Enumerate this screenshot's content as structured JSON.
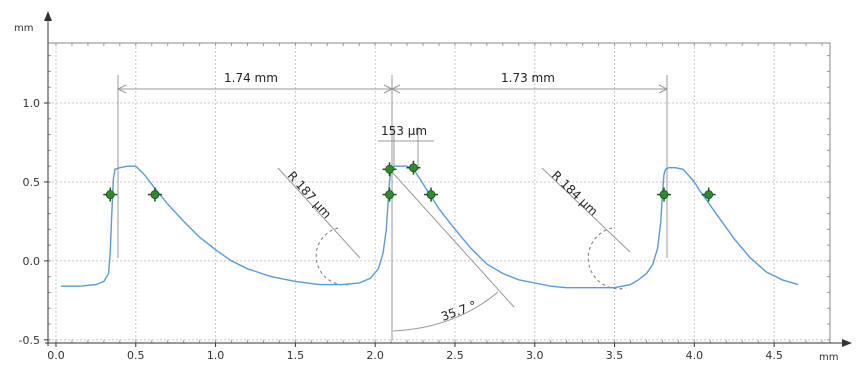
{
  "chart_data": {
    "type": "line",
    "y_unit": "mm",
    "x_unit": "mm",
    "xlim": [
      -0.05,
      4.85
    ],
    "ylim": [
      -0.52,
      1.38
    ],
    "grid": true,
    "x_ticks": [
      {
        "v": 0.0,
        "label": "0.0"
      },
      {
        "v": 0.5,
        "label": "0.5"
      },
      {
        "v": 1.0,
        "label": "1.0"
      },
      {
        "v": 1.5,
        "label": "1.5"
      },
      {
        "v": 2.0,
        "label": "2.0"
      },
      {
        "v": 2.5,
        "label": "2.5"
      },
      {
        "v": 3.0,
        "label": "3.0"
      },
      {
        "v": 3.5,
        "label": "3.5"
      },
      {
        "v": 4.0,
        "label": "4.0"
      },
      {
        "v": 4.5,
        "label": "4.5"
      }
    ],
    "y_ticks": [
      {
        "v": -0.5,
        "label": "-0.5"
      },
      {
        "v": 0.0,
        "label": "0.0"
      },
      {
        "v": 0.5,
        "label": "0.5"
      },
      {
        "v": 1.0,
        "label": "1.0"
      }
    ],
    "series": [
      {
        "color": "#5b9bd5",
        "x": [
          0.03,
          0.15,
          0.25,
          0.3,
          0.33,
          0.34,
          0.35,
          0.36,
          0.37,
          0.4,
          0.45,
          0.5,
          0.55,
          0.62,
          0.7,
          0.8,
          0.9,
          1.0,
          1.1,
          1.2,
          1.35,
          1.5,
          1.65,
          1.8,
          1.9,
          1.97,
          2.02,
          2.05,
          2.07,
          2.08,
          2.09,
          2.1,
          2.12,
          2.14,
          2.17,
          2.2,
          2.24,
          2.28,
          2.33,
          2.4,
          2.5,
          2.6,
          2.7,
          2.8,
          2.9,
          3.0,
          3.1,
          3.2,
          3.3,
          3.4,
          3.5,
          3.6,
          3.65,
          3.7,
          3.74,
          3.77,
          3.79,
          3.8,
          3.81,
          3.82,
          3.84,
          3.88,
          3.93,
          4.0,
          4.03,
          4.08,
          4.15,
          4.25,
          4.35,
          4.45,
          4.55,
          4.65
        ],
        "y": [
          -0.16,
          -0.16,
          -0.15,
          -0.13,
          -0.08,
          0.05,
          0.3,
          0.52,
          0.58,
          0.59,
          0.6,
          0.6,
          0.55,
          0.46,
          0.36,
          0.25,
          0.15,
          0.07,
          0.0,
          -0.05,
          -0.1,
          -0.13,
          -0.15,
          -0.15,
          -0.14,
          -0.11,
          -0.05,
          0.05,
          0.2,
          0.35,
          0.5,
          0.59,
          0.6,
          0.6,
          0.6,
          0.6,
          0.58,
          0.52,
          0.44,
          0.33,
          0.2,
          0.08,
          -0.02,
          -0.08,
          -0.12,
          -0.14,
          -0.16,
          -0.17,
          -0.17,
          -0.17,
          -0.17,
          -0.15,
          -0.12,
          -0.08,
          -0.02,
          0.08,
          0.25,
          0.42,
          0.55,
          0.58,
          0.59,
          0.59,
          0.58,
          0.5,
          0.45,
          0.38,
          0.28,
          0.14,
          0.02,
          -0.07,
          -0.12,
          -0.15
        ]
      }
    ],
    "markers": [
      {
        "x": 0.34,
        "y": 0.42
      },
      {
        "x": 0.62,
        "y": 0.42
      },
      {
        "x": 2.09,
        "y": 0.58
      },
      {
        "x": 2.09,
        "y": 0.42
      },
      {
        "x": 2.24,
        "y": 0.59
      },
      {
        "x": 2.35,
        "y": 0.42
      },
      {
        "x": 3.81,
        "y": 0.42
      },
      {
        "x": 4.09,
        "y": 0.42
      }
    ],
    "annotations": {
      "dim1": "1.74 mm",
      "dim2": "1.73 mm",
      "width": "153 µm",
      "radius1": "R 187 µm",
      "radius2": "R 184 µm",
      "angle": "35.7 °"
    }
  }
}
